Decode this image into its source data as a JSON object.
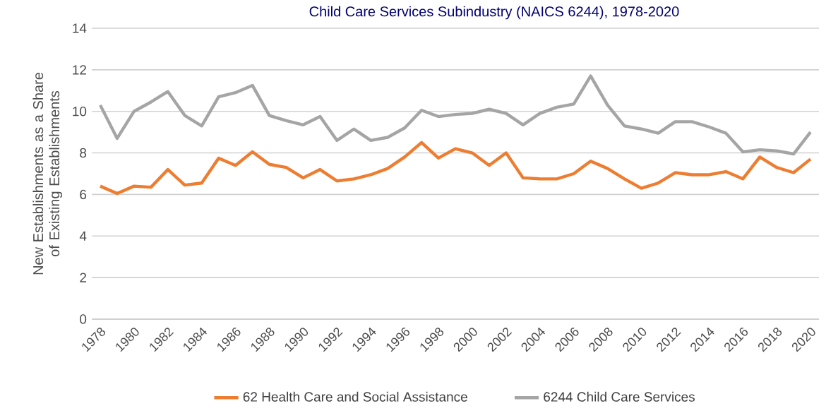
{
  "chart_data": {
    "type": "line",
    "title": "Child Care Services Subindustry (NAICS 6244), 1978-2020",
    "ylabel": "New Establishments as a Share of Existing Establishments",
    "categories": [
      "1978",
      null,
      "1980",
      null,
      "1982",
      null,
      "1984",
      null,
      "1986",
      null,
      "1988",
      null,
      "1990",
      null,
      "1992",
      null,
      "1994",
      null,
      "1996",
      null,
      "1998",
      null,
      "2000",
      null,
      "2002",
      null,
      "2004",
      null,
      "2006",
      null,
      "2008",
      null,
      "2010",
      null,
      "2012",
      null,
      "2014",
      null,
      "2016",
      null,
      "2018",
      null,
      "2020"
    ],
    "series": [
      {
        "name": "62 Health Care and Social Assistance",
        "color": "#ed7d31",
        "values": [
          6.4,
          6.05,
          6.4,
          6.35,
          7.2,
          6.45,
          6.55,
          7.75,
          7.4,
          8.05,
          7.45,
          7.3,
          6.8,
          7.2,
          6.65,
          6.75,
          6.95,
          7.25,
          7.8,
          8.5,
          7.75,
          8.2,
          8.0,
          7.4,
          8.0,
          6.8,
          6.75,
          6.75,
          7.0,
          7.6,
          7.25,
          6.75,
          6.3,
          6.55,
          7.05,
          6.95,
          6.95,
          7.1,
          6.75,
          7.8,
          7.3,
          7.05,
          7.7
        ]
      },
      {
        "name": "6244 Child Care Services",
        "color": "#a5a5a5",
        "values": [
          10.3,
          8.7,
          10.0,
          10.45,
          10.95,
          9.8,
          9.3,
          10.7,
          10.9,
          11.25,
          9.8,
          9.55,
          9.35,
          9.75,
          8.6,
          9.15,
          8.6,
          8.75,
          9.2,
          10.05,
          9.75,
          9.85,
          9.9,
          10.1,
          9.9,
          9.35,
          9.9,
          10.2,
          10.35,
          11.7,
          10.3,
          9.3,
          9.15,
          8.95,
          9.5,
          9.5,
          9.25,
          8.95,
          8.05,
          8.15,
          8.1,
          7.95,
          9.0
        ]
      }
    ],
    "ylim": [
      0,
      14
    ],
    "yticks": [
      0,
      2,
      4,
      6,
      8,
      10,
      12,
      14
    ],
    "grid": "y",
    "legend": "bottom",
    "marker": "none",
    "line_style": "solid"
  }
}
